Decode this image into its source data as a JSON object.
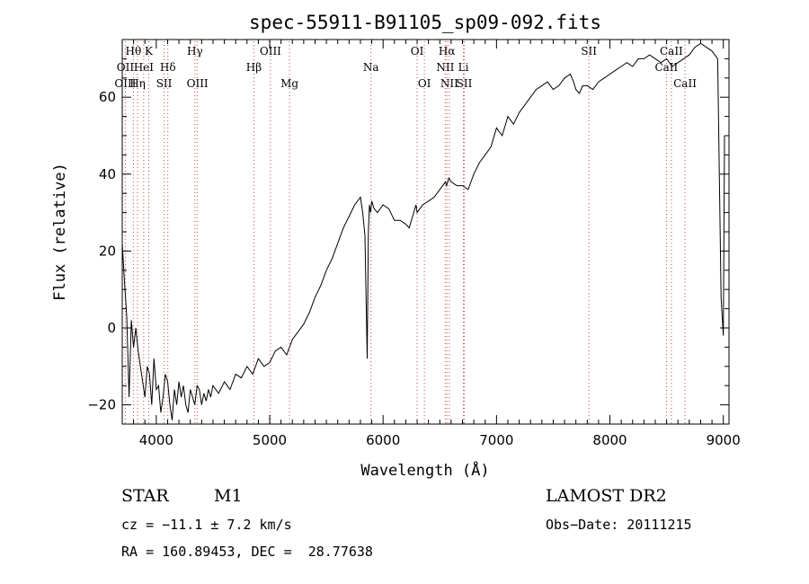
{
  "chart_data": {
    "type": "line",
    "title": "spec-55911-B91105_sp09-092.fits",
    "xlabel": "Wavelength (Å)",
    "ylabel": "Flux (relative)",
    "xlim": [
      3700,
      9050
    ],
    "ylim": [
      -25,
      75
    ],
    "x_ticks": [
      4000,
      5000,
      6000,
      7000,
      8000,
      9000
    ],
    "y_ticks": [
      -20,
      0,
      20,
      40,
      60
    ],
    "grid": false,
    "series": [
      {
        "x": [
          3700,
          3720,
          3740,
          3760,
          3780,
          3800,
          3820,
          3840,
          3860,
          3880,
          3900,
          3920,
          3940,
          3960,
          3980,
          4000,
          4020,
          4040,
          4060,
          4080,
          4100,
          4120,
          4140,
          4160,
          4180,
          4200,
          4220,
          4240,
          4260,
          4280,
          4300,
          4320,
          4340,
          4360,
          4380,
          4400,
          4420,
          4440,
          4460,
          4480,
          4500,
          4550,
          4600,
          4650,
          4700,
          4750,
          4800,
          4850,
          4900,
          4950,
          5000,
          5050,
          5100,
          5150,
          5200,
          5250,
          5300,
          5350,
          5400,
          5450,
          5500,
          5550,
          5600,
          5650,
          5700,
          5750,
          5800,
          5820,
          5840,
          5860,
          5870,
          5880,
          5890,
          5900,
          5920,
          5950,
          6000,
          6050,
          6100,
          6150,
          6200,
          6230,
          6260,
          6290,
          6300,
          6350,
          6400,
          6450,
          6500,
          6550,
          6560,
          6580,
          6600,
          6650,
          6700,
          6750,
          6800,
          6850,
          6900,
          6950,
          7000,
          7050,
          7100,
          7150,
          7200,
          7250,
          7300,
          7350,
          7400,
          7450,
          7500,
          7550,
          7600,
          7650,
          7680,
          7700,
          7730,
          7760,
          7800,
          7850,
          7900,
          7950,
          8000,
          8050,
          8100,
          8150,
          8200,
          8250,
          8300,
          8350,
          8400,
          8450,
          8500,
          8550,
          8600,
          8650,
          8700,
          8750,
          8800,
          8850,
          8900,
          8950,
          8980,
          9000,
          9010
        ],
        "y": [
          22,
          12,
          3,
          -18,
          2,
          -5,
          0,
          -6,
          -10,
          -14,
          -18,
          -10,
          -12,
          -20,
          -8,
          -16,
          -15,
          -22,
          -18,
          -12,
          -14,
          -20,
          -24,
          -16,
          -20,
          -14,
          -18,
          -15,
          -20,
          -22,
          -16,
          -18,
          -20,
          -15,
          -16,
          -20,
          -17,
          -19,
          -16,
          -18,
          -15,
          -17,
          -14,
          -16,
          -12,
          -13,
          -10,
          -12,
          -8,
          -10,
          -9,
          -6,
          -5,
          -7,
          -3,
          -1,
          1,
          4,
          8,
          11,
          15,
          18,
          22,
          26,
          29,
          32,
          34,
          30,
          24,
          -8,
          25,
          32,
          30,
          33,
          31,
          30,
          32,
          31,
          28,
          28,
          27,
          26,
          29,
          32,
          30,
          32,
          33,
          34,
          36,
          38,
          37,
          39,
          38,
          37,
          37,
          36,
          40,
          43,
          45,
          47,
          52,
          50,
          55,
          53,
          56,
          58,
          60,
          62,
          63,
          64,
          62,
          63,
          65,
          66,
          64,
          62,
          61,
          63,
          63,
          62,
          64,
          65,
          66,
          67,
          68,
          69,
          68,
          70,
          70,
          71,
          70,
          69,
          70,
          68,
          69,
          70,
          71,
          73,
          74,
          73,
          72,
          70,
          8,
          -2,
          50
        ]
      }
    ],
    "annotations": {
      "lines": [
        {
          "label": "Hθ",
          "wl": 3798,
          "row": 0
        },
        {
          "label": "K",
          "wl": 3934,
          "row": 0
        },
        {
          "label": "OII",
          "wl": 3727,
          "row": 1
        },
        {
          "label": "HeI",
          "wl": 3889,
          "row": 1
        },
        {
          "label": "Hδ",
          "wl": 4102,
          "row": 1
        },
        {
          "label": "OIII",
          "wl": 3727,
          "row": 2
        },
        {
          "label": "Hη",
          "wl": 3835,
          "row": 2
        },
        {
          "label": "SII",
          "wl": 4069,
          "row": 2
        },
        {
          "label": "Hγ",
          "wl": 4341,
          "row": 0
        },
        {
          "label": "OIII",
          "wl": 4363,
          "row": 2
        },
        {
          "label": "Hβ",
          "wl": 4861,
          "row": 1
        },
        {
          "label": "OIII",
          "wl": 5007,
          "row": 0
        },
        {
          "label": "Mg",
          "wl": 5175,
          "row": 2
        },
        {
          "label": "Na",
          "wl": 5893,
          "row": 1
        },
        {
          "label": "OI",
          "wl": 6300,
          "row": 0
        },
        {
          "label": "OI",
          "wl": 6364,
          "row": 2
        },
        {
          "label": "Hα",
          "wl": 6563,
          "row": 0
        },
        {
          "label": "NII",
          "wl": 6548,
          "row": 1
        },
        {
          "label": "Li",
          "wl": 6708,
          "row": 1
        },
        {
          "label": "NII",
          "wl": 6584,
          "row": 2
        },
        {
          "label": "SII",
          "wl": 6716,
          "row": 2
        },
        {
          "label": "SII",
          "wl": 7815,
          "row": 0
        },
        {
          "label": "CaII",
          "wl": 8542,
          "row": 0
        },
        {
          "label": "CaII",
          "wl": 8498,
          "row": 1
        },
        {
          "label": "CaII",
          "wl": 8662,
          "row": 2
        }
      ]
    }
  },
  "info": {
    "object_class": "STAR",
    "subclass": "M1",
    "survey": "LAMOST DR2",
    "cz": "cz = −11.1 ± 7.2 km/s",
    "obs_date": "Obs−Date: 20111215",
    "radec": "RA = 160.89453, DEC =  28.77638"
  }
}
